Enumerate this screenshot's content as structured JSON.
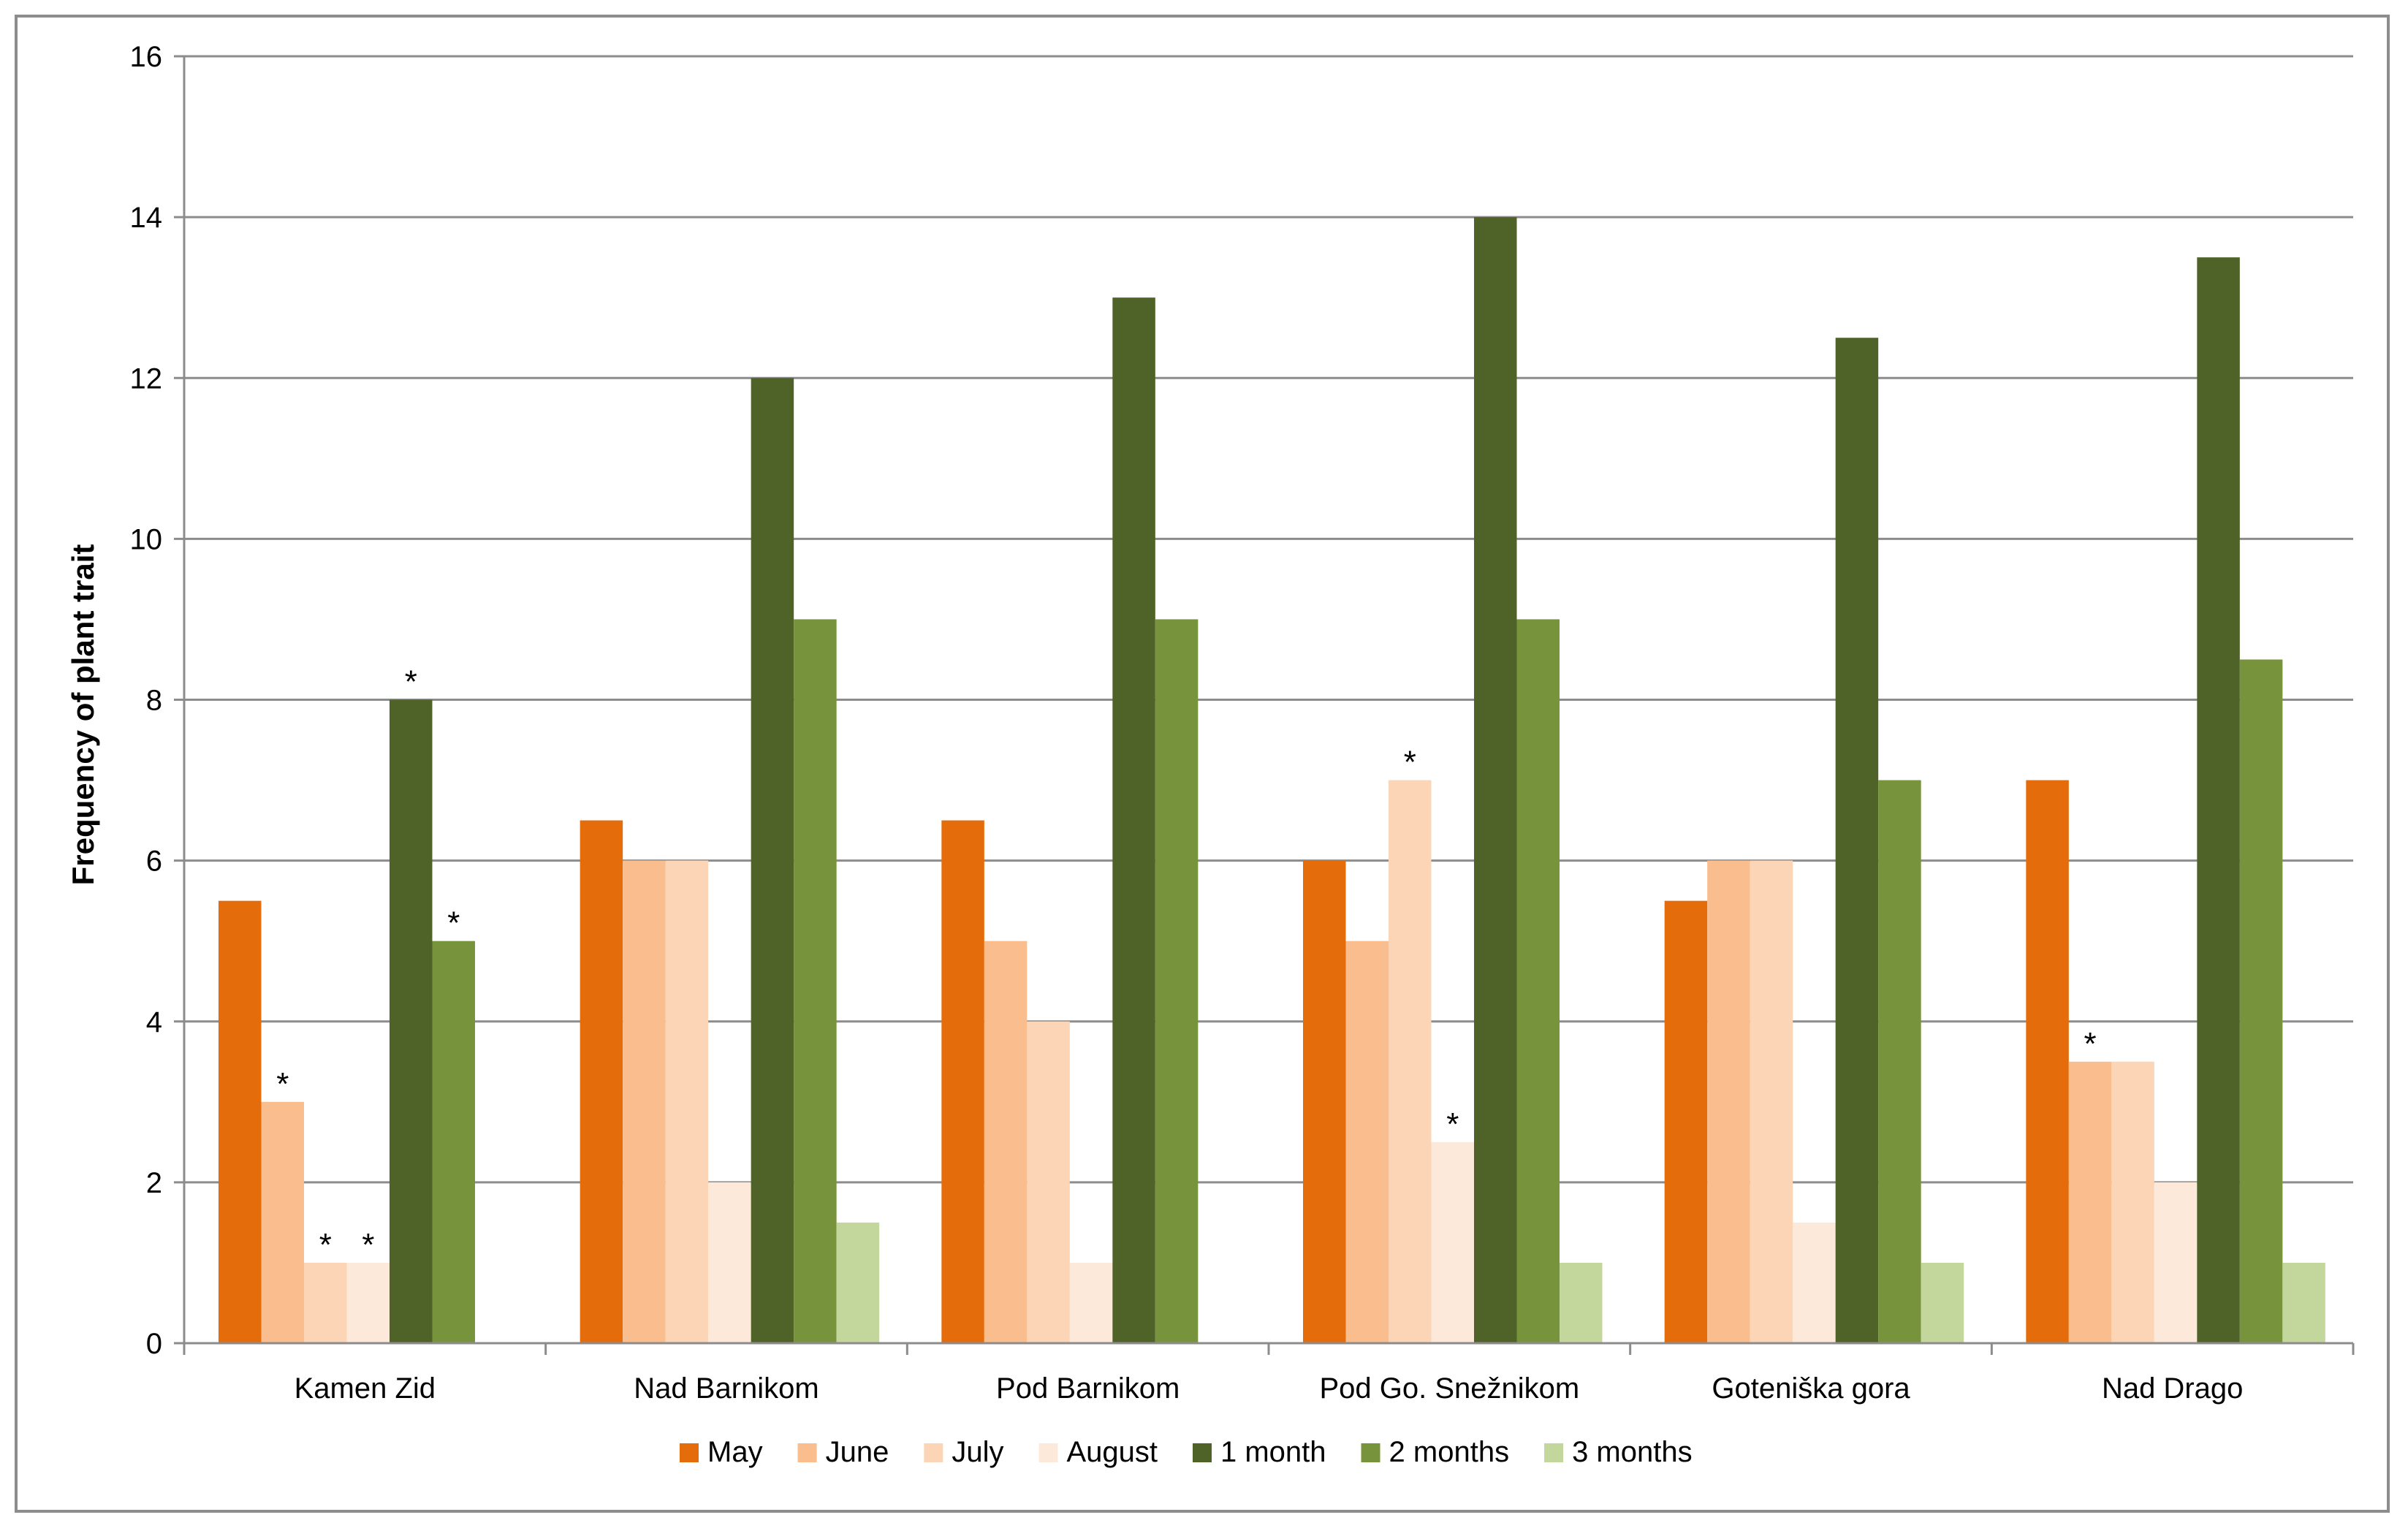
{
  "chart_data": {
    "type": "bar",
    "title": "",
    "xlabel": "",
    "ylabel": "Frequency of plant trait",
    "ylim": [
      0,
      16
    ],
    "yticks": [
      0,
      2,
      4,
      6,
      8,
      10,
      12,
      14,
      16
    ],
    "grid": true,
    "legend_position": "bottom",
    "categories": [
      "Kamen Zid",
      "Nad Barnikom",
      "Pod Barnikom",
      "Pod Go. Snežnikom",
      "Goteniška gora",
      "Nad Drago"
    ],
    "series": [
      {
        "name": "May",
        "color": "#e46c0a",
        "values": [
          5.5,
          6.5,
          6.5,
          6,
          5.5,
          7
        ]
      },
      {
        "name": "June",
        "color": "#f9bd8e",
        "values": [
          3,
          6,
          5,
          5,
          6,
          3.5
        ]
      },
      {
        "name": "July",
        "color": "#fbd5b5",
        "values": [
          1,
          6,
          4,
          7,
          6,
          3.5
        ]
      },
      {
        "name": "August",
        "color": "#fde9d9",
        "values": [
          1,
          2,
          1,
          2.5,
          1.5,
          2
        ]
      },
      {
        "name": "1 month",
        "color": "#4f6228",
        "values": [
          8,
          12,
          13,
          14,
          12.5,
          13.5
        ]
      },
      {
        "name": "2 months",
        "color": "#77933c",
        "values": [
          5,
          9,
          9,
          9,
          7,
          8.5
        ]
      },
      {
        "name": "3 months",
        "color": "#c3d69b",
        "values": [
          0,
          1.5,
          0,
          1,
          1,
          1
        ]
      }
    ],
    "annotations": [
      {
        "text": "*",
        "category": "Kamen Zid",
        "series": "June"
      },
      {
        "text": "*",
        "category": "Kamen Zid",
        "series": "July"
      },
      {
        "text": "*",
        "category": "Kamen Zid",
        "series": "August"
      },
      {
        "text": "*",
        "category": "Kamen Zid",
        "series": "1 month"
      },
      {
        "text": "*",
        "category": "Kamen Zid",
        "series": "2 months"
      },
      {
        "text": "*",
        "category": "Pod Go. Snežnikom",
        "series": "July"
      },
      {
        "text": "*",
        "category": "Pod Go. Snežnikom",
        "series": "August"
      },
      {
        "text": "*",
        "category": "Nad Drago",
        "series": "June"
      }
    ]
  }
}
